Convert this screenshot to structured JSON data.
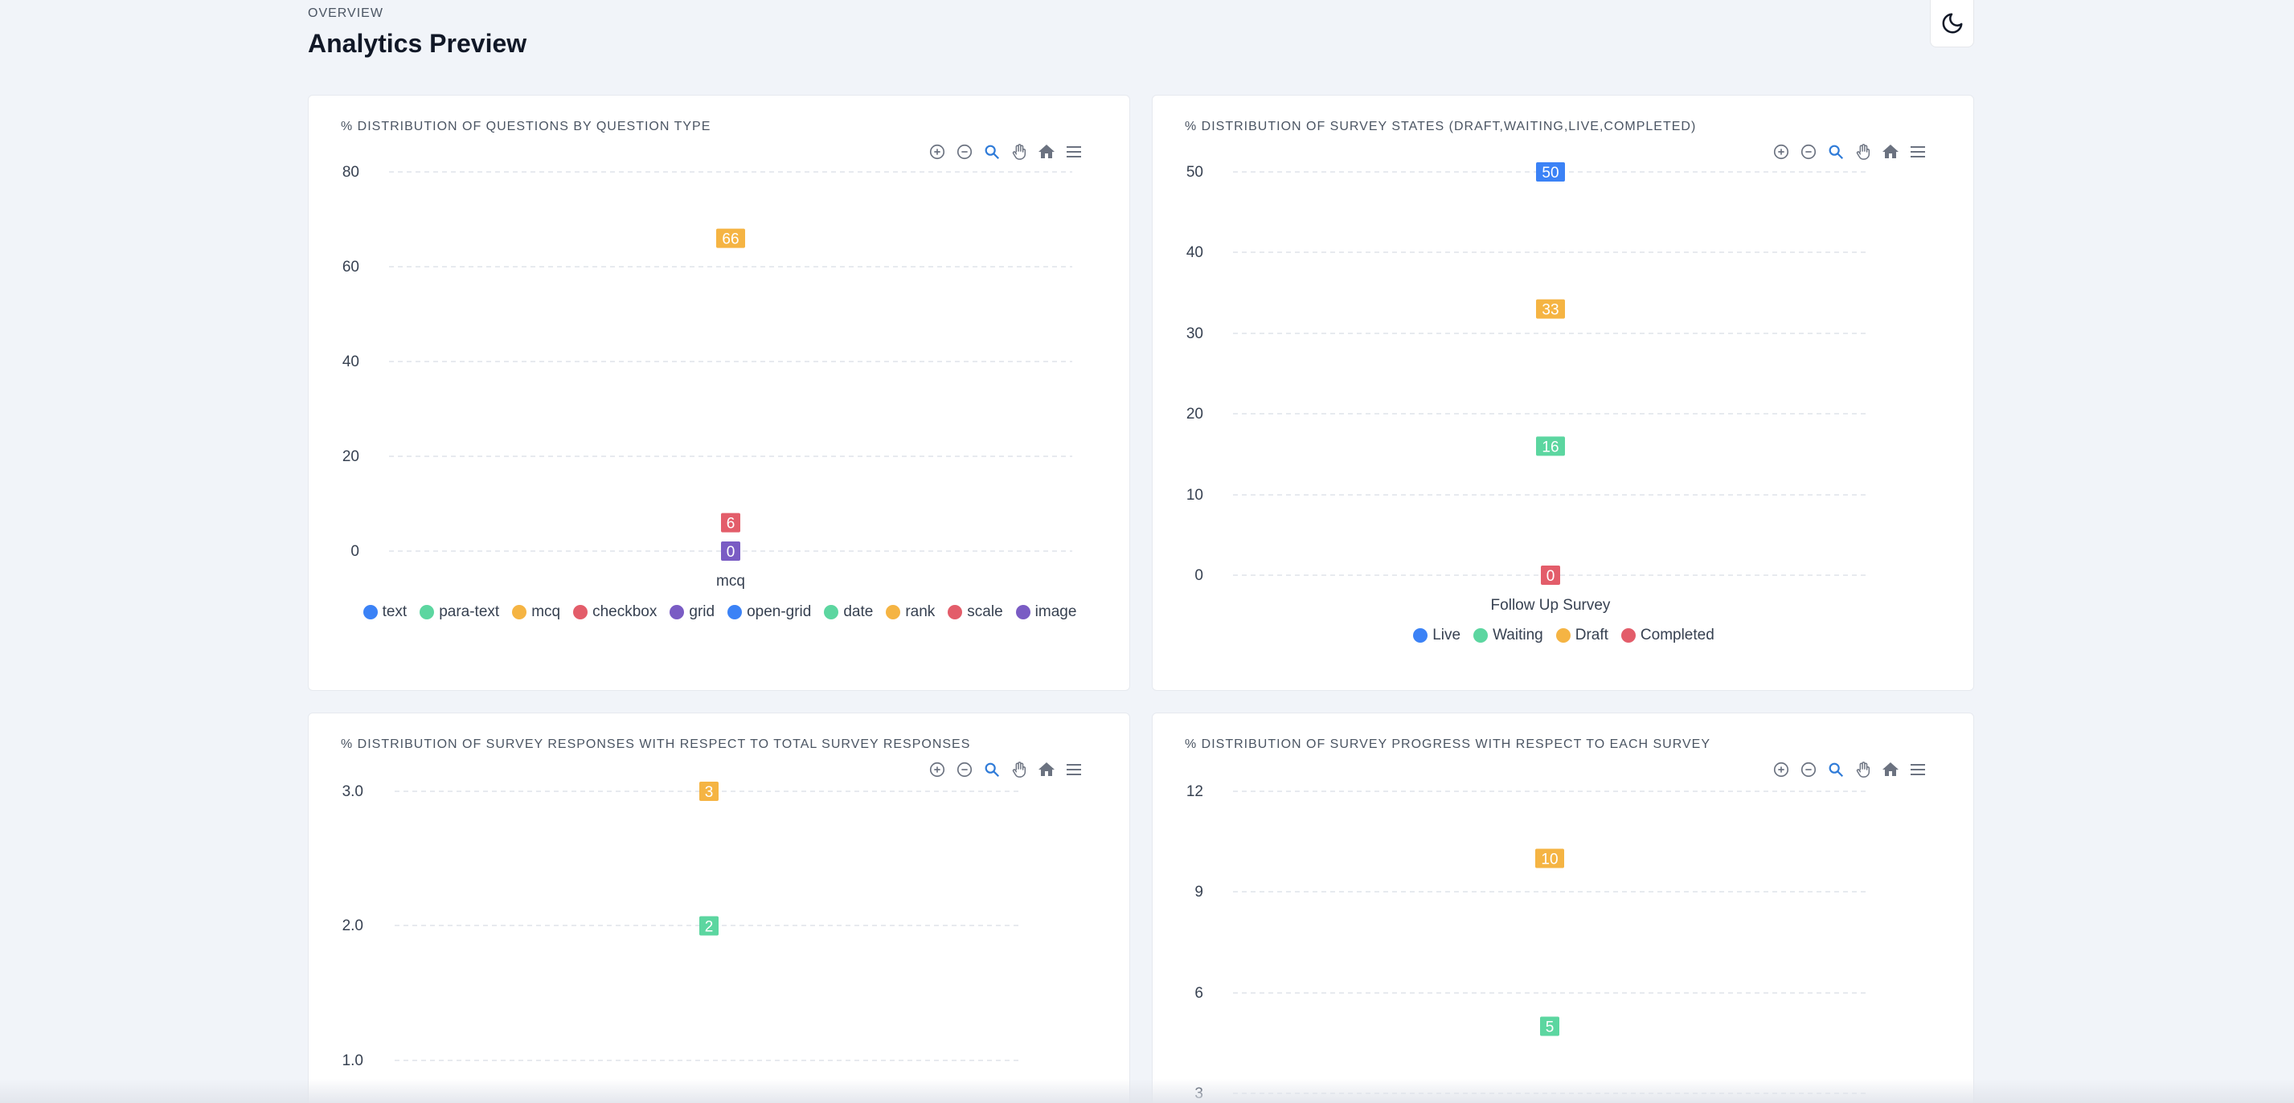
{
  "header": {
    "overline": "Overview",
    "title": "Analytics Preview"
  },
  "colors": {
    "blue": "#3b82f6",
    "green": "#5cd6a0",
    "orange": "#f5b443",
    "red": "#e35d6a",
    "purple": "#7a5cc4",
    "grid": "#dfe3ea",
    "axis_text": "#374151"
  },
  "toolbar_icons": [
    "zoom-in-icon",
    "zoom-out-icon",
    "selection-zoom-icon",
    "pan-icon",
    "home-icon",
    "menu-icon"
  ],
  "charts": {
    "question_types": {
      "title": "% Distribution of Questions by Question Type"
    },
    "survey_states": {
      "title": "% Distribution of Survey States (Draft,Waiting,Live,Completed)"
    },
    "survey_responses": {
      "title": "% Distribution of Survey Responses with respect to Total Survey Responses"
    },
    "survey_progress": {
      "title": "% Distribution of Survey Progress with respect to each Survey"
    }
  },
  "chart_data": [
    {
      "id": "question_types",
      "type": "bar",
      "categories": [
        "mcq"
      ],
      "yticks": [
        "80",
        "60",
        "40",
        "20",
        "0"
      ],
      "ylim": [
        0,
        80
      ],
      "grid": true,
      "legend_position": "bottom",
      "series": [
        {
          "name": "text",
          "values": [
            null
          ],
          "color": "#3b82f6"
        },
        {
          "name": "para-text",
          "values": [
            null
          ],
          "color": "#5cd6a0"
        },
        {
          "name": "mcq",
          "values": [
            66
          ],
          "color": "#f5b443"
        },
        {
          "name": "checkbox",
          "values": [
            6
          ],
          "color": "#e35d6a"
        },
        {
          "name": "grid",
          "values": [
            0
          ],
          "color": "#7a5cc4"
        },
        {
          "name": "open-grid",
          "values": [
            null
          ],
          "color": "#3b82f6"
        },
        {
          "name": "date",
          "values": [
            null
          ],
          "color": "#5cd6a0"
        },
        {
          "name": "rank",
          "values": [
            null
          ],
          "color": "#f5b443"
        },
        {
          "name": "scale",
          "values": [
            null
          ],
          "color": "#e35d6a"
        },
        {
          "name": "image",
          "values": [
            null
          ],
          "color": "#7a5cc4"
        }
      ]
    },
    {
      "id": "survey_states",
      "type": "bar",
      "categories": [
        "Follow Up Survey"
      ],
      "yticks": [
        "50",
        "40",
        "30",
        "20",
        "10",
        "0"
      ],
      "ylim": [
        0,
        50
      ],
      "grid": true,
      "legend_position": "bottom",
      "series": [
        {
          "name": "Live",
          "values": [
            50
          ],
          "color": "#3b82f6"
        },
        {
          "name": "Waiting",
          "values": [
            16
          ],
          "color": "#5cd6a0"
        },
        {
          "name": "Draft",
          "values": [
            33
          ],
          "color": "#f5b443"
        },
        {
          "name": "Completed",
          "values": [
            0
          ],
          "color": "#e35d6a"
        }
      ]
    },
    {
      "id": "survey_responses",
      "type": "bar",
      "categories": [
        ""
      ],
      "yticks": [
        "3.0",
        "2.0",
        "1.0"
      ],
      "ylim": [
        0,
        3
      ],
      "grid": true,
      "series": [
        {
          "values": [
            3
          ],
          "color": "#f5b443"
        },
        {
          "values": [
            2
          ],
          "color": "#5cd6a0"
        }
      ]
    },
    {
      "id": "survey_progress",
      "type": "bar",
      "categories": [
        ""
      ],
      "yticks": [
        "12",
        "9",
        "6",
        "3"
      ],
      "ylim": [
        0,
        12
      ],
      "grid": true,
      "series": [
        {
          "values": [
            10
          ],
          "color": "#f5b443"
        },
        {
          "values": [
            5
          ],
          "color": "#5cd6a0"
        }
      ]
    }
  ]
}
